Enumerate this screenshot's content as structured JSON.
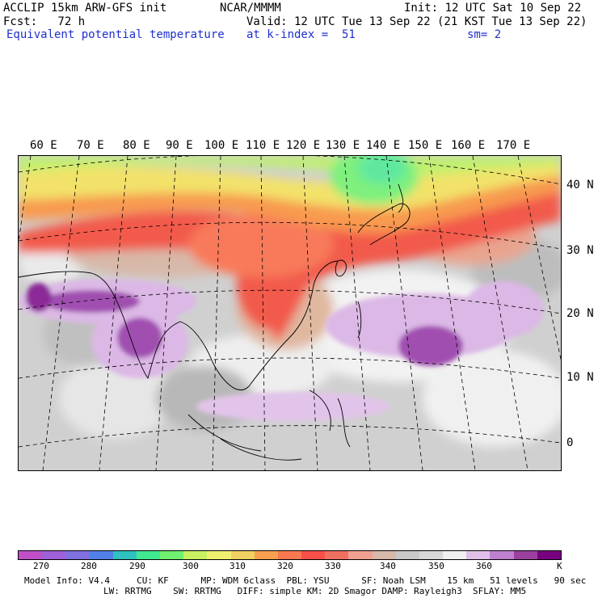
{
  "header": {
    "model_title": "ACCLIP 15km ARW-GFS init",
    "center": "NCAR/MMMM",
    "init": "Init: 12 UTC Sat 10 Sep 22",
    "fcst": "Fcst:   72 h",
    "valid": "Valid: 12 UTC Tue 13 Sep 22 (21 KST Tue 13 Sep 22)",
    "field": "Equivalent potential temperature",
    "level": "at k-index =  51",
    "smooth": "sm= 2"
  },
  "map": {
    "lon_labels": [
      "60 E",
      "70 E",
      "80 E",
      "90 E",
      "100 E",
      "110 E",
      "120 E",
      "130 E",
      "140 E",
      "150 E",
      "160 E",
      "170 E"
    ],
    "lat_labels": [
      "40 N",
      "30 N",
      "20 N",
      "10 N",
      "0"
    ]
  },
  "colorbar": {
    "unit": "K",
    "ticks": [
      "270",
      "280",
      "290",
      "300",
      "310",
      "320",
      "330",
      "340",
      "350",
      "360"
    ],
    "colors": [
      "#c050c8",
      "#a060d8",
      "#8070e0",
      "#5080e8",
      "#30c0c0",
      "#40e890",
      "#70f070",
      "#c8f060",
      "#f0f070",
      "#f0d060",
      "#f8a050",
      "#f87850",
      "#f85048",
      "#f07060",
      "#f0a090",
      "#d8b8a8",
      "#c8c8c8",
      "#d8d8d8",
      "#f0f0f0",
      "#e0c0e8",
      "#c080d0",
      "#9c40a0",
      "#780080"
    ]
  },
  "model_info": {
    "line1": "Model Info: V4.4     CU: KF      MP: WDM 6class  PBL: YSU      SF: Noah LSM    15 km   51 levels   90 sec",
    "line2": "LW: RRTMG    SW: RRTMG   DIFF: simple KM: 2D Smagor DAMP: Rayleigh3  SFLAY: MM5"
  }
}
